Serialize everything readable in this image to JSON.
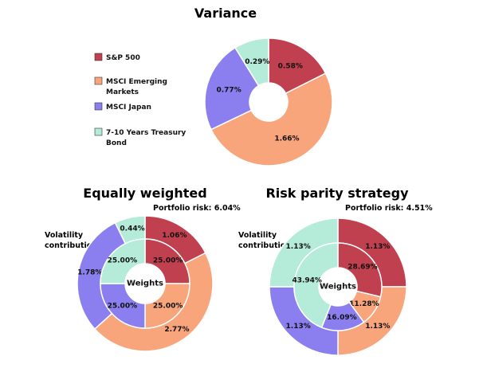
{
  "colors": {
    "sp500": "#c1404f",
    "emerging": "#f9a57c",
    "japan": "#8b7ff0",
    "treasury": "#b4ecd9"
  },
  "legend": [
    {
      "key": "sp500",
      "label_lines": [
        "S&P 500"
      ]
    },
    {
      "key": "emerging",
      "label_lines": [
        "MSCI Emerging",
        "Markets"
      ]
    },
    {
      "key": "japan",
      "label_lines": [
        "MSCI Japan"
      ]
    },
    {
      "key": "treasury",
      "label_lines": [
        "7-10 Years Treasury",
        "Bond"
      ]
    }
  ],
  "chart_data": [
    {
      "type": "pie",
      "title": "Variance",
      "categories": [
        "S&P 500",
        "MSCI Emerging Markets",
        "MSCI Japan",
        "7-10 Years Treasury Bond"
      ],
      "values": [
        0.58,
        1.66,
        0.77,
        0.29
      ],
      "value_labels": [
        "0.58%",
        "1.66%",
        "0.77%",
        "0.29%"
      ]
    },
    {
      "type": "pie",
      "title": "Equally weighted",
      "subtitle": "Portfolio risk: 6.04%",
      "outer_label": [
        "Volatility",
        "contribution"
      ],
      "inner_label": "Weights",
      "categories": [
        "S&P 500",
        "MSCI Emerging Markets",
        "MSCI Japan",
        "7-10 Years Treasury Bond"
      ],
      "series": [
        {
          "name": "Volatility contribution",
          "values": [
            1.06,
            2.77,
            1.78,
            0.44
          ],
          "value_labels": [
            "1.06%",
            "2.77%",
            "1.78%",
            "0.44%"
          ]
        },
        {
          "name": "Weights",
          "values": [
            25.0,
            25.0,
            25.0,
            25.0
          ],
          "value_labels": [
            "25.00%",
            "25.00%",
            "25.00%",
            "25.00%"
          ]
        }
      ]
    },
    {
      "type": "pie",
      "title": "Risk parity strategy",
      "subtitle": "Portfolio risk: 4.51%",
      "outer_label": [
        "Volatility",
        "contribution"
      ],
      "inner_label": "Weights",
      "categories": [
        "S&P 500",
        "MSCI Emerging Markets",
        "MSCI Japan",
        "7-10 Years Treasury Bond"
      ],
      "series": [
        {
          "name": "Volatility contribution",
          "values": [
            1.13,
            1.13,
            1.13,
            1.13
          ],
          "value_labels": [
            "1.13%",
            "1.13%",
            "1.13%",
            "1.13%"
          ]
        },
        {
          "name": "Weights",
          "values": [
            28.69,
            11.28,
            16.09,
            43.94
          ],
          "value_labels": [
            "28.69%",
            "11.28%",
            "16.09%",
            "43.94%"
          ]
        }
      ]
    }
  ]
}
